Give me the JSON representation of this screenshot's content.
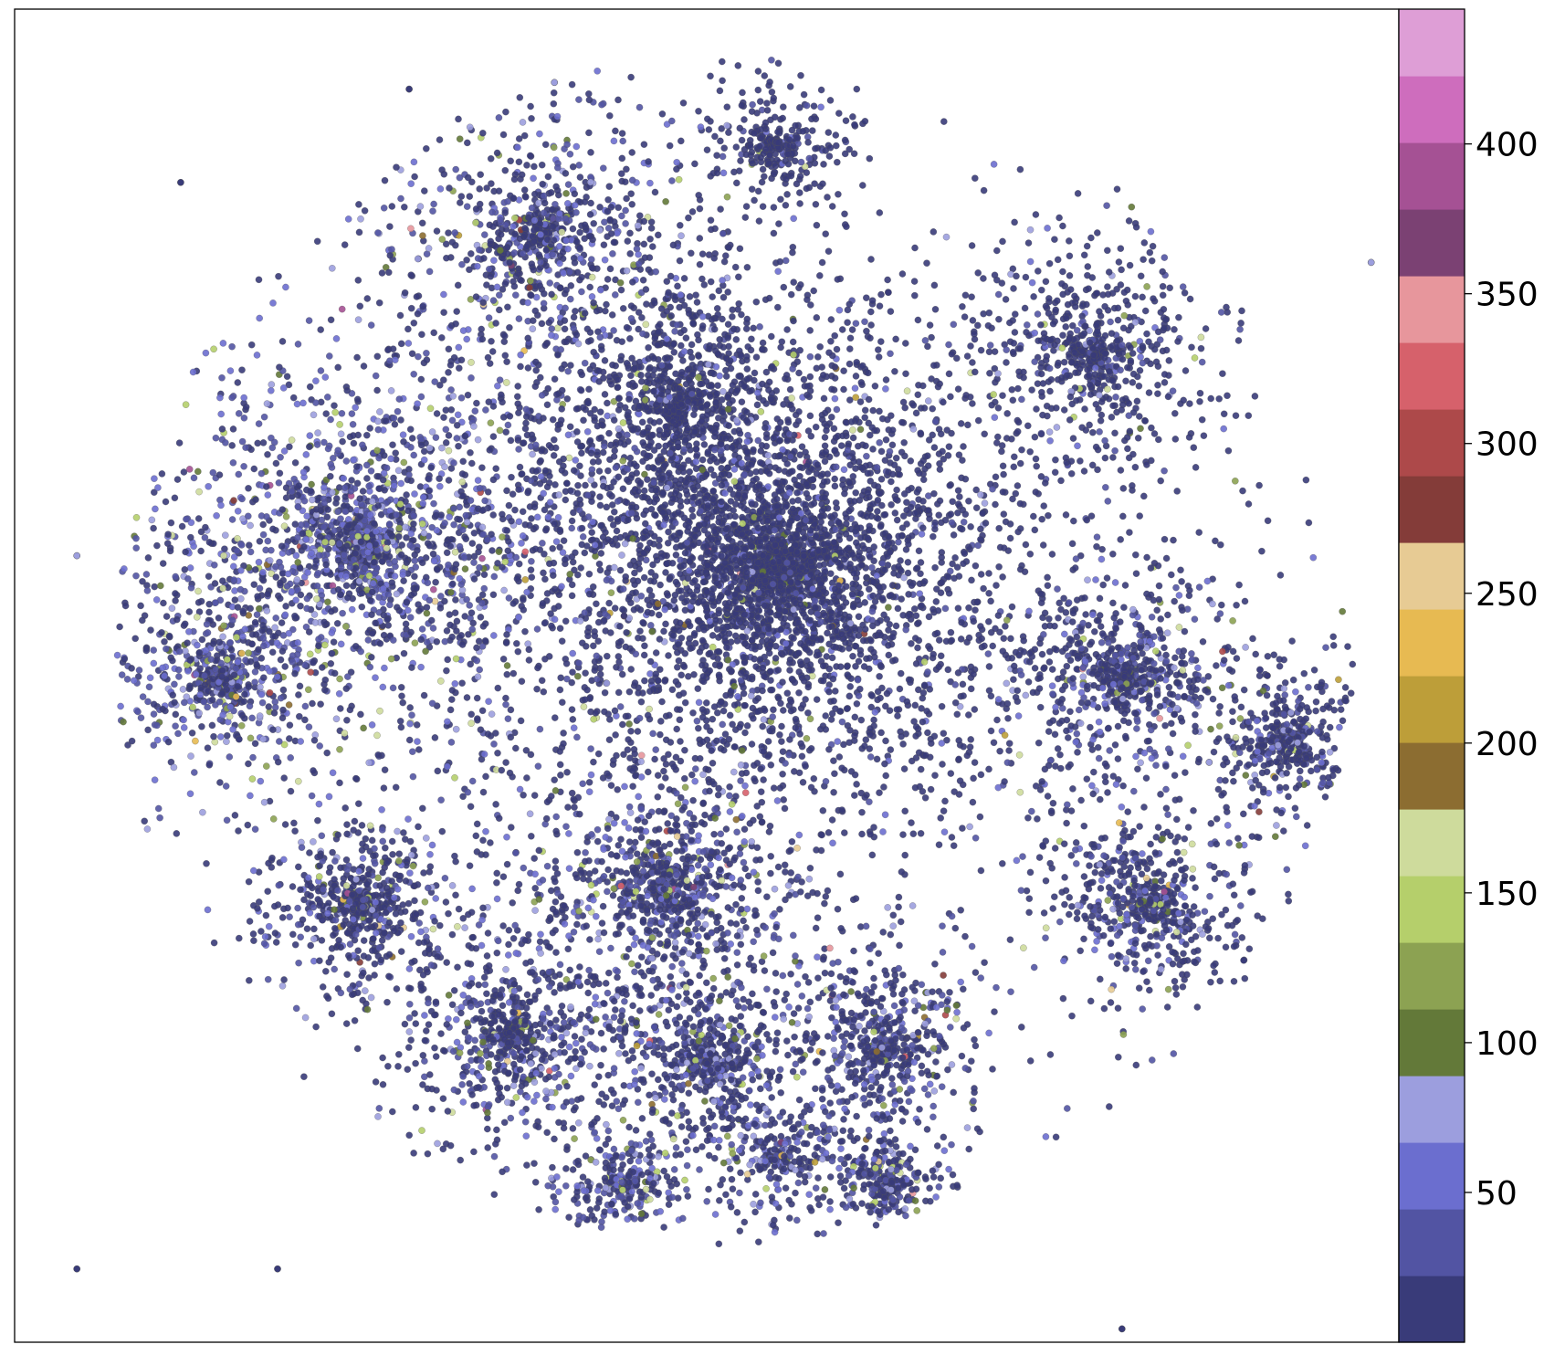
{
  "chart_data": {
    "type": "scatter",
    "title": "",
    "xlabel": "",
    "ylabel": "",
    "axes_ticks_visible": false,
    "grid": false,
    "legend": "none",
    "colormap": "tab20b",
    "colorbar": {
      "location": "right",
      "range": [
        0,
        445
      ],
      "ticks": [
        50,
        100,
        150,
        200,
        250,
        300,
        350,
        400
      ],
      "tick_labels": [
        "50",
        "100",
        "150",
        "200",
        "250",
        "300",
        "350",
        "400"
      ],
      "colors": [
        "#393b79",
        "#5254a3",
        "#6b6ecf",
        "#9c9ede",
        "#637939",
        "#8ca252",
        "#b5cf6b",
        "#cedb9c",
        "#8c6d31",
        "#bd9e39",
        "#e7ba52",
        "#e7cb94",
        "#843c39",
        "#ad494a",
        "#d6616b",
        "#e7969c",
        "#7b4173",
        "#a55194",
        "#ce6dbd",
        "#de9ed6"
      ]
    },
    "description_of_distribution": {
      "dominant_values": "mostly below 25 (dark navy), many 25-90 (blue/lavender), scattered olive/green 90-180, rare brown/red/pink above 180",
      "clusters": [
        {
          "cx": 0.55,
          "cy": 0.42,
          "r": 0.23,
          "weight": 0.32,
          "darkness": 0.88
        },
        {
          "cx": 0.25,
          "cy": 0.4,
          "r": 0.16,
          "weight": 0.12,
          "darkness": 0.4
        },
        {
          "cx": 0.38,
          "cy": 0.17,
          "r": 0.1,
          "weight": 0.05,
          "darkness": 0.55
        },
        {
          "cx": 0.78,
          "cy": 0.26,
          "r": 0.08,
          "weight": 0.04,
          "darkness": 0.8
        },
        {
          "cx": 0.8,
          "cy": 0.5,
          "r": 0.08,
          "weight": 0.04,
          "darkness": 0.65
        },
        {
          "cx": 0.82,
          "cy": 0.67,
          "r": 0.08,
          "weight": 0.04,
          "darkness": 0.7
        },
        {
          "cx": 0.92,
          "cy": 0.55,
          "r": 0.06,
          "weight": 0.03,
          "darkness": 0.75
        },
        {
          "cx": 0.47,
          "cy": 0.66,
          "r": 0.1,
          "weight": 0.06,
          "darkness": 0.55
        },
        {
          "cx": 0.36,
          "cy": 0.77,
          "r": 0.09,
          "weight": 0.05,
          "darkness": 0.6
        },
        {
          "cx": 0.5,
          "cy": 0.79,
          "r": 0.08,
          "weight": 0.04,
          "darkness": 0.6
        },
        {
          "cx": 0.63,
          "cy": 0.78,
          "r": 0.08,
          "weight": 0.04,
          "darkness": 0.6
        },
        {
          "cx": 0.25,
          "cy": 0.67,
          "r": 0.07,
          "weight": 0.04,
          "darkness": 0.7
        },
        {
          "cx": 0.55,
          "cy": 0.1,
          "r": 0.05,
          "weight": 0.02,
          "darkness": 0.9
        },
        {
          "cx": 0.15,
          "cy": 0.5,
          "r": 0.08,
          "weight": 0.04,
          "darkness": 0.45
        },
        {
          "cx": 0.44,
          "cy": 0.88,
          "r": 0.05,
          "weight": 0.02,
          "darkness": 0.55
        },
        {
          "cx": 0.55,
          "cy": 0.86,
          "r": 0.06,
          "weight": 0.02,
          "darkness": 0.55
        },
        {
          "cx": 0.63,
          "cy": 0.88,
          "r": 0.04,
          "weight": 0.02,
          "darkness": 0.6
        },
        {
          "cx": 0.48,
          "cy": 0.3,
          "r": 0.12,
          "weight": 0.07,
          "darkness": 0.85
        }
      ]
    }
  }
}
